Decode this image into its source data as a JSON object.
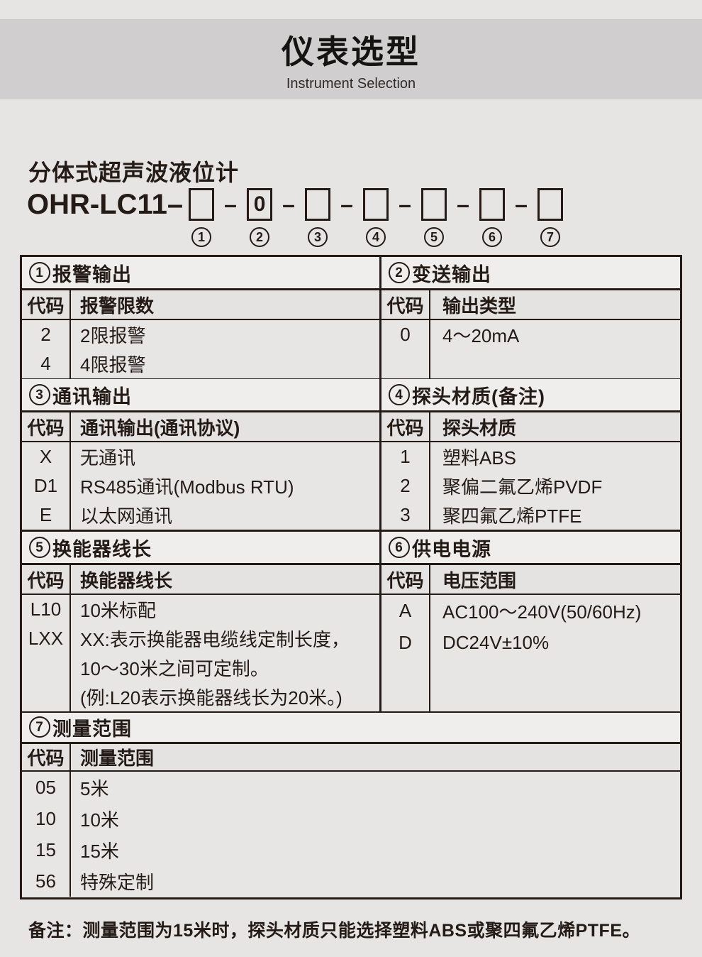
{
  "banner": {
    "title": "仪表选型",
    "subtitle": "Instrument Selection"
  },
  "product": {
    "name": "分体式超声波液位计",
    "model_prefix": "OHR-LC11–",
    "separator": "–",
    "slots": [
      {
        "value": "",
        "num": "1"
      },
      {
        "value": "0",
        "num": "2"
      },
      {
        "value": "",
        "num": "3"
      },
      {
        "value": "",
        "num": "4"
      },
      {
        "value": "",
        "num": "5"
      },
      {
        "value": "",
        "num": "6"
      },
      {
        "value": "",
        "num": "7"
      }
    ]
  },
  "sections": [
    {
      "num": "1",
      "title": "报警输出",
      "code_header": "代码",
      "value_header": "报警限数",
      "rows": [
        [
          "2",
          "2限报警"
        ],
        [
          "4",
          "4限报警"
        ]
      ]
    },
    {
      "num": "2",
      "title": "变送输出",
      "code_header": "代码",
      "value_header": "输出类型",
      "rows": [
        [
          "0",
          "4～20mA"
        ]
      ]
    },
    {
      "num": "3",
      "title": "通讯输出",
      "code_header": "代码",
      "value_header": "通讯输出(通讯协议)",
      "rows": [
        [
          "X",
          "无通讯"
        ],
        [
          "D1",
          "RS485通讯(Modbus RTU)"
        ],
        [
          "E",
          "以太网通讯"
        ]
      ]
    },
    {
      "num": "4",
      "title": "探头材质(备注)",
      "code_header": "代码",
      "value_header": "探头材质",
      "rows": [
        [
          "1",
          "塑料ABS"
        ],
        [
          "2",
          "聚偏二氟乙烯PVDF"
        ],
        [
          "3",
          "聚四氟乙烯PTFE"
        ]
      ]
    },
    {
      "num": "5",
      "title": "换能器线长",
      "code_header": "代码",
      "value_header": "换能器线长",
      "rows": [
        [
          "L10",
          "10米标配"
        ],
        [
          "LXX",
          "XX:表示换能器电缆线定制长度，"
        ],
        [
          "",
          "10～30米之间可定制。"
        ],
        [
          "",
          "(例:L20表示换能器线长为20米。)"
        ]
      ]
    },
    {
      "num": "6",
      "title": "供电电源",
      "code_header": "代码",
      "value_header": "电压范围",
      "rows": [
        [
          "A",
          "AC100～240V(50/60Hz)"
        ],
        [
          "D",
          "DC24V±10%"
        ]
      ]
    },
    {
      "num": "7",
      "title": "测量范围",
      "code_header": "代码",
      "value_header": "测量范围",
      "rows": [
        [
          "05",
          "5米"
        ],
        [
          "10",
          "10米"
        ],
        [
          "15",
          "15米"
        ],
        [
          "56",
          "特殊定制"
        ]
      ]
    }
  ],
  "note": {
    "label": "备注：",
    "text": "测量范围为15米时，探头材质只能选择塑料ABS或聚四氟乙烯PTFE。"
  },
  "colors": {
    "ink": "#241b17",
    "page_bg": "#e7e5e4",
    "banner_bg": "#d0cecf",
    "section_header_bg": "#efeeed",
    "code_header_bg": "#e5e3e2",
    "cell_bg": "#e8e6e5"
  }
}
